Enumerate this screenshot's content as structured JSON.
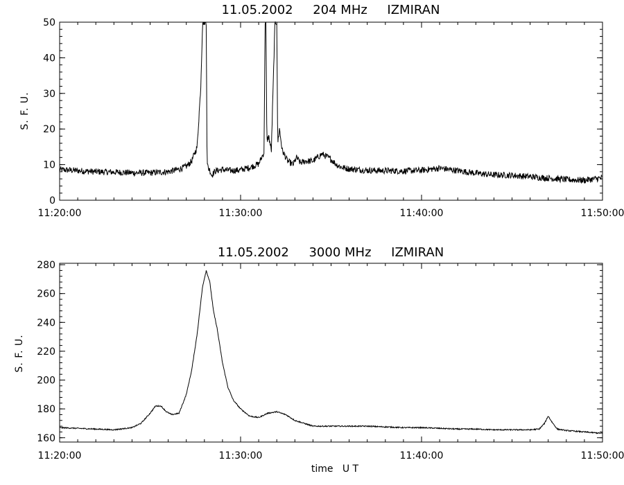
{
  "chart_data": [
    {
      "type": "line",
      "title": "11.05.2002     204 MHz     IZMIRAN",
      "xlabel": "",
      "ylabel": "S. F. U.",
      "xlim": [
        "11:20:00",
        "11:50:00"
      ],
      "ylim": [
        0,
        50
      ],
      "x_ticks": [
        "11:20:00",
        "11:30:00",
        "11:40:00",
        "11:50:00"
      ],
      "y_ticks": [
        "0",
        "10",
        "20",
        "30",
        "40",
        "50"
      ],
      "grid": false,
      "series": [
        {
          "x_minutes": [
            0,
            1,
            2,
            3,
            4,
            5,
            6,
            6.6,
            7.0,
            7.3,
            7.6,
            7.8,
            7.9,
            8.0,
            8.1,
            8.15,
            8.25,
            8.3,
            8.4,
            8.6,
            9.0,
            9.5,
            10.0,
            10.5,
            11.0,
            11.3,
            11.35,
            11.4,
            11.45,
            11.55,
            11.7,
            11.9,
            12.0,
            12.05,
            12.15,
            12.3,
            12.6,
            12.9,
            13.1,
            13.3,
            13.6,
            14.0,
            14.5,
            15.0,
            15.3,
            15.6,
            16.0,
            17,
            18,
            19,
            20,
            21,
            22,
            23,
            24,
            25,
            26,
            27,
            28,
            29,
            30
          ],
          "y_sfu": [
            8.6,
            8.3,
            8.0,
            7.9,
            7.7,
            7.7,
            8.0,
            8.7,
            9.5,
            11.0,
            15.0,
            32.0,
            50,
            50,
            50,
            10.0,
            8.8,
            8.5,
            7.0,
            8.2,
            8.6,
            8.3,
            8.5,
            9.2,
            10.2,
            13.5,
            50,
            50,
            16.5,
            18.0,
            14.0,
            50,
            50,
            16.0,
            20.0,
            14.0,
            11.0,
            10.0,
            12.0,
            10.5,
            11.0,
            11.0,
            13.0,
            11.5,
            10.0,
            9.2,
            8.8,
            8.4,
            8.3,
            8.2,
            8.4,
            9.0,
            8.3,
            7.6,
            7.1,
            7.0,
            6.6,
            6.2,
            5.8,
            5.6,
            6.3
          ]
        }
      ]
    },
    {
      "type": "line",
      "title": "11.05.2002     3000 MHz     IZMIRAN",
      "xlabel": "time   U T",
      "ylabel": "S. F. U.",
      "xlim": [
        "11:20:00",
        "11:50:00"
      ],
      "ylim": [
        157,
        281
      ],
      "x_ticks": [
        "11:20:00",
        "11:30:00",
        "11:40:00",
        "11:50:00"
      ],
      "y_ticks": [
        "160",
        "180",
        "200",
        "220",
        "240",
        "260",
        "280"
      ],
      "grid": false,
      "series": [
        {
          "x_minutes": [
            0,
            1,
            2,
            3,
            4,
            4.5,
            5.0,
            5.3,
            5.6,
            5.9,
            6.2,
            6.6,
            7.0,
            7.3,
            7.6,
            7.9,
            8.1,
            8.3,
            8.5,
            8.7,
            9.0,
            9.3,
            9.6,
            10.0,
            10.5,
            11.0,
            11.5,
            12.0,
            12.5,
            13.0,
            13.5,
            14.0,
            15,
            16,
            17,
            18,
            19,
            20,
            21,
            22,
            23,
            24,
            25,
            26,
            26.5,
            26.8,
            27.0,
            27.2,
            27.5,
            28,
            29,
            30
          ],
          "y_sfu": [
            167,
            166.5,
            166,
            165.5,
            167,
            170,
            177,
            182,
            182,
            178,
            176,
            177,
            190,
            207,
            232,
            265,
            276,
            268,
            248,
            236,
            212,
            195,
            186,
            180,
            175,
            174,
            177,
            178,
            176,
            172,
            170,
            168,
            168,
            168,
            168,
            167.5,
            167,
            167,
            166.5,
            166,
            166,
            165.5,
            165.5,
            165.5,
            166,
            170,
            175,
            171,
            166,
            165,
            164,
            163
          ]
        }
      ]
    }
  ]
}
